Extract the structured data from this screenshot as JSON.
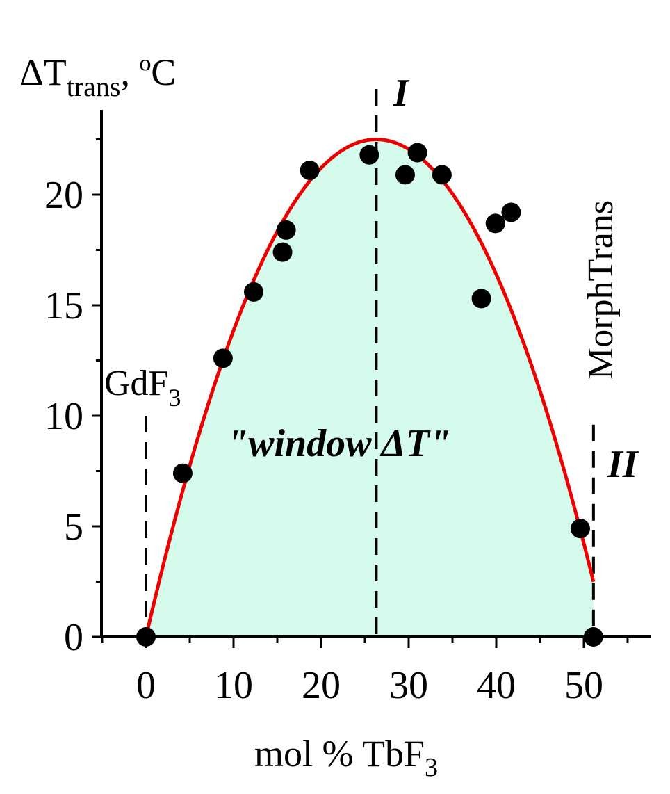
{
  "chart_data": {
    "type": "scatter",
    "ylabel": {
      "symbol": "ΔT",
      "subscript": "trans",
      "unit": ", ºC"
    },
    "xlabel": {
      "text": "mol % TbF",
      "subscript": "3"
    },
    "xlim": [
      -5,
      57
    ],
    "ylim": [
      0,
      23.5
    ],
    "xticks": [
      0,
      10,
      20,
      30,
      40,
      50
    ],
    "yticks": [
      0,
      5,
      10,
      15,
      20
    ],
    "points": [
      {
        "x": 0,
        "y": 0
      },
      {
        "x": 4.2,
        "y": 7.4
      },
      {
        "x": 8.8,
        "y": 12.6
      },
      {
        "x": 12.3,
        "y": 15.6
      },
      {
        "x": 15.6,
        "y": 17.4
      },
      {
        "x": 16.0,
        "y": 18.4
      },
      {
        "x": 18.7,
        "y": 21.1
      },
      {
        "x": 25.5,
        "y": 21.8
      },
      {
        "x": 29.6,
        "y": 20.9
      },
      {
        "x": 31.0,
        "y": 21.9
      },
      {
        "x": 33.8,
        "y": 20.9
      },
      {
        "x": 38.3,
        "y": 15.3
      },
      {
        "x": 39.9,
        "y": 18.7
      },
      {
        "x": 41.7,
        "y": 19.2
      },
      {
        "x": 49.6,
        "y": 4.9
      },
      {
        "x": 51.1,
        "y": 0
      }
    ],
    "fit_curve": {
      "type": "parabola",
      "vertex_x": 26.3,
      "vertex_y": 22.5,
      "x_start": 0,
      "x_end": 51.1,
      "color": "#ee0000"
    },
    "fill_color": "#d5fbec",
    "vertical_lines": [
      {
        "x": 0,
        "label": "GdF",
        "label_subscript": "3"
      },
      {
        "x": 26.3,
        "label": "I"
      },
      {
        "x": 51.1,
        "label": "II"
      }
    ],
    "annotations": {
      "window": "\"window ΔT\"",
      "morph": "MorphTrans"
    },
    "marker_color": "#000000"
  }
}
